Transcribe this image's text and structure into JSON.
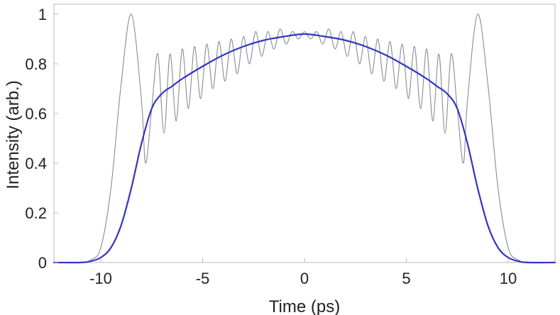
{
  "chart_data": {
    "type": "line",
    "title": "",
    "xlabel": "Time (ps)",
    "ylabel": "Intensity (arb.)",
    "xlim": [
      -12.3,
      12.3
    ],
    "ylim": [
      0,
      1.04
    ],
    "x_ticks": [
      -10,
      -5,
      0,
      5,
      10
    ],
    "y_ticks": [
      0,
      0.2,
      0.4,
      0.6,
      0.8,
      1
    ],
    "x_tick_labels": [
      "-10",
      "-5",
      "0",
      "5",
      "10"
    ],
    "y_tick_labels": [
      "0",
      "0.2",
      "0.4",
      "0.6",
      "0.8",
      "1"
    ],
    "grid": false,
    "legend": "none",
    "series": [
      {
        "color": "#8a8a9a",
        "style": "thin",
        "x": [
          -12.3,
          -11,
          -10.5,
          -10,
          -9.5,
          -9,
          -8.5,
          -8,
          -7.8,
          -7.5,
          -7.2,
          -6.9,
          -6.6,
          -6.3,
          -6,
          -5.7,
          -5.4,
          -5.1,
          -4.8,
          -4.5,
          -4.2,
          -3.9,
          -3.6,
          -3.3,
          -3,
          -2.7,
          -2.4,
          -2.1,
          -1.8,
          -1.5,
          -1.2,
          -0.9,
          -0.6,
          -0.3,
          0,
          0.3,
          0.6,
          0.9,
          1.2,
          1.5,
          1.8,
          2.1,
          2.4,
          2.7,
          3,
          3.3,
          3.6,
          3.9,
          4.2,
          4.5,
          4.8,
          5.1,
          5.4,
          5.7,
          6,
          6.3,
          6.6,
          6.9,
          7.2,
          7.5,
          7.8,
          8,
          8.5,
          9,
          9.5,
          10,
          10.5,
          11,
          12.3
        ],
        "y": [
          0,
          0,
          0.01,
          0.06,
          0.3,
          0.72,
          1.0,
          0.65,
          0.4,
          0.62,
          0.84,
          0.52,
          0.84,
          0.57,
          0.86,
          0.62,
          0.87,
          0.66,
          0.88,
          0.7,
          0.89,
          0.73,
          0.9,
          0.76,
          0.91,
          0.8,
          0.93,
          0.83,
          0.93,
          0.86,
          0.94,
          0.88,
          0.93,
          0.9,
          0.93,
          0.9,
          0.93,
          0.88,
          0.94,
          0.86,
          0.93,
          0.83,
          0.93,
          0.8,
          0.91,
          0.76,
          0.9,
          0.73,
          0.89,
          0.7,
          0.88,
          0.66,
          0.87,
          0.62,
          0.86,
          0.57,
          0.84,
          0.52,
          0.84,
          0.62,
          0.4,
          0.65,
          1.0,
          0.72,
          0.3,
          0.06,
          0.01,
          0,
          0
        ]
      },
      {
        "color": "#3535c0",
        "style": "thick",
        "x": [
          -12.3,
          -11,
          -10.5,
          -10,
          -9.5,
          -9,
          -8.5,
          -8,
          -7.5,
          -7,
          -6.5,
          -6,
          -5,
          -4,
          -3,
          -2,
          -1,
          0,
          1,
          2,
          3,
          4,
          5,
          6,
          6.5,
          7,
          7.5,
          8,
          8.5,
          9,
          9.5,
          10,
          10.5,
          11,
          12.3
        ],
        "y": [
          0,
          0,
          0.005,
          0.02,
          0.06,
          0.15,
          0.3,
          0.48,
          0.62,
          0.68,
          0.71,
          0.74,
          0.79,
          0.835,
          0.87,
          0.895,
          0.91,
          0.92,
          0.91,
          0.895,
          0.87,
          0.835,
          0.79,
          0.74,
          0.71,
          0.68,
          0.62,
          0.48,
          0.3,
          0.15,
          0.06,
          0.02,
          0.005,
          0,
          0
        ]
      }
    ]
  }
}
